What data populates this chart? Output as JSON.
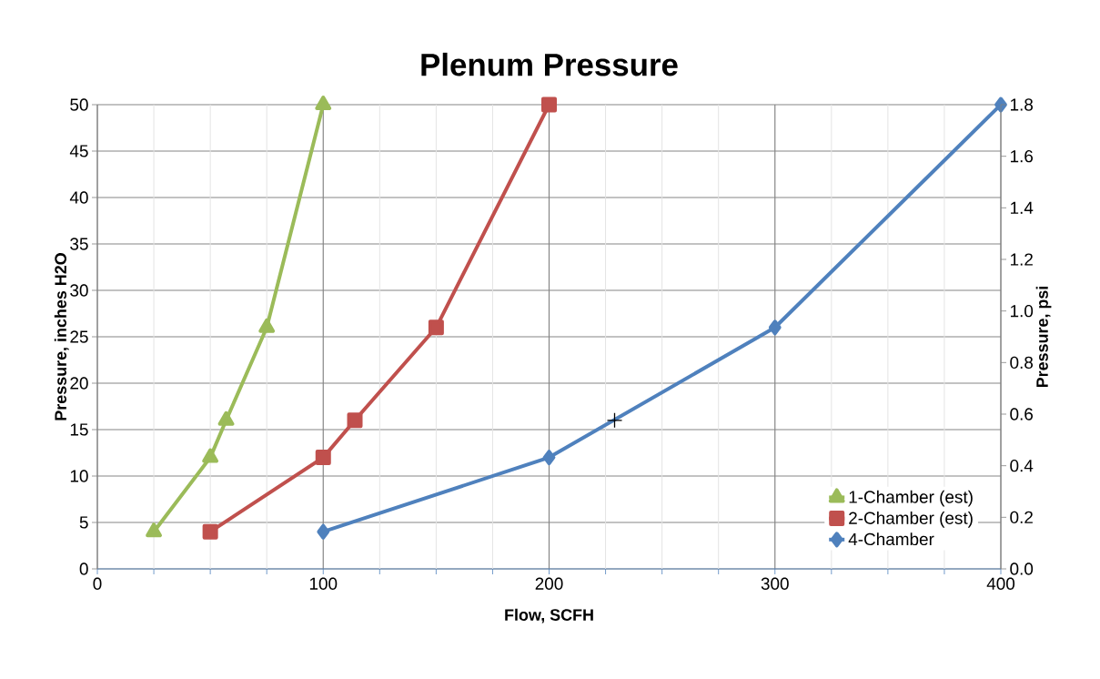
{
  "chart_data": {
    "type": "line",
    "title": "Plenum Pressure",
    "xlabel": "Flow, SCFH",
    "ylabel": "Pressure, inches H2O",
    "y2label": "Pressure, psi",
    "series": [
      {
        "name": "1-Chamber (est)",
        "color": "#9bbb59",
        "marker": "triangle",
        "x": [
          25,
          50,
          57,
          75,
          100
        ],
        "values": [
          4,
          12,
          16,
          26,
          50
        ]
      },
      {
        "name": "2-Chamber (est)",
        "color": "#c0504d",
        "marker": "square",
        "x": [
          50,
          100,
          114,
          150,
          200
        ],
        "values": [
          4,
          12,
          16,
          26,
          50
        ]
      },
      {
        "name": "4-Chamber",
        "color": "#4f81bd",
        "marker": "diamond",
        "x": [
          100,
          200,
          300,
          400
        ],
        "values": [
          4,
          12,
          26,
          50
        ]
      },
      {
        "type": "scatter",
        "color": "#000000",
        "marker": "cross",
        "x": [
          229
        ],
        "values": [
          16
        ]
      }
    ],
    "xlim": [
      0,
      400
    ],
    "ylim": [
      0,
      50
    ],
    "y2lim": [
      0,
      1.8
    ],
    "xticks": [
      0,
      {
        "value": 25,
        "label": null
      },
      {
        "value": 50,
        "label": null
      },
      {
        "value": 75,
        "label": null
      },
      100,
      {
        "value": 125,
        "label": null
      },
      {
        "value": 150,
        "label": null
      },
      {
        "value": 175,
        "label": null
      },
      200,
      {
        "value": 225,
        "label": null
      },
      {
        "value": 250,
        "label": null
      },
      {
        "value": 275,
        "label": null
      },
      300,
      {
        "value": 325,
        "label": null
      },
      {
        "value": 350,
        "label": null
      },
      {
        "value": 375,
        "label": null
      },
      400
    ],
    "yticks": [
      0,
      5,
      10,
      15,
      20,
      25,
      30,
      35,
      40,
      45,
      50
    ],
    "y2ticks": [
      {
        "value": 0,
        "label": "0.0"
      },
      {
        "value": 0.2,
        "label": "0.2"
      },
      {
        "value": 0.4,
        "label": "0.4"
      },
      {
        "value": 0.6,
        "label": "0.6"
      },
      {
        "value": 0.8,
        "label": "0.8"
      },
      {
        "value": 1.0,
        "label": "1.0"
      },
      {
        "value": 1.2,
        "label": "1.2"
      },
      {
        "value": 1.4,
        "label": "1.4"
      },
      {
        "value": 1.6,
        "label": "1.6"
      },
      {
        "value": 1.8,
        "label": "1.8"
      }
    ],
    "grid": true,
    "legend": "bottom right"
  }
}
